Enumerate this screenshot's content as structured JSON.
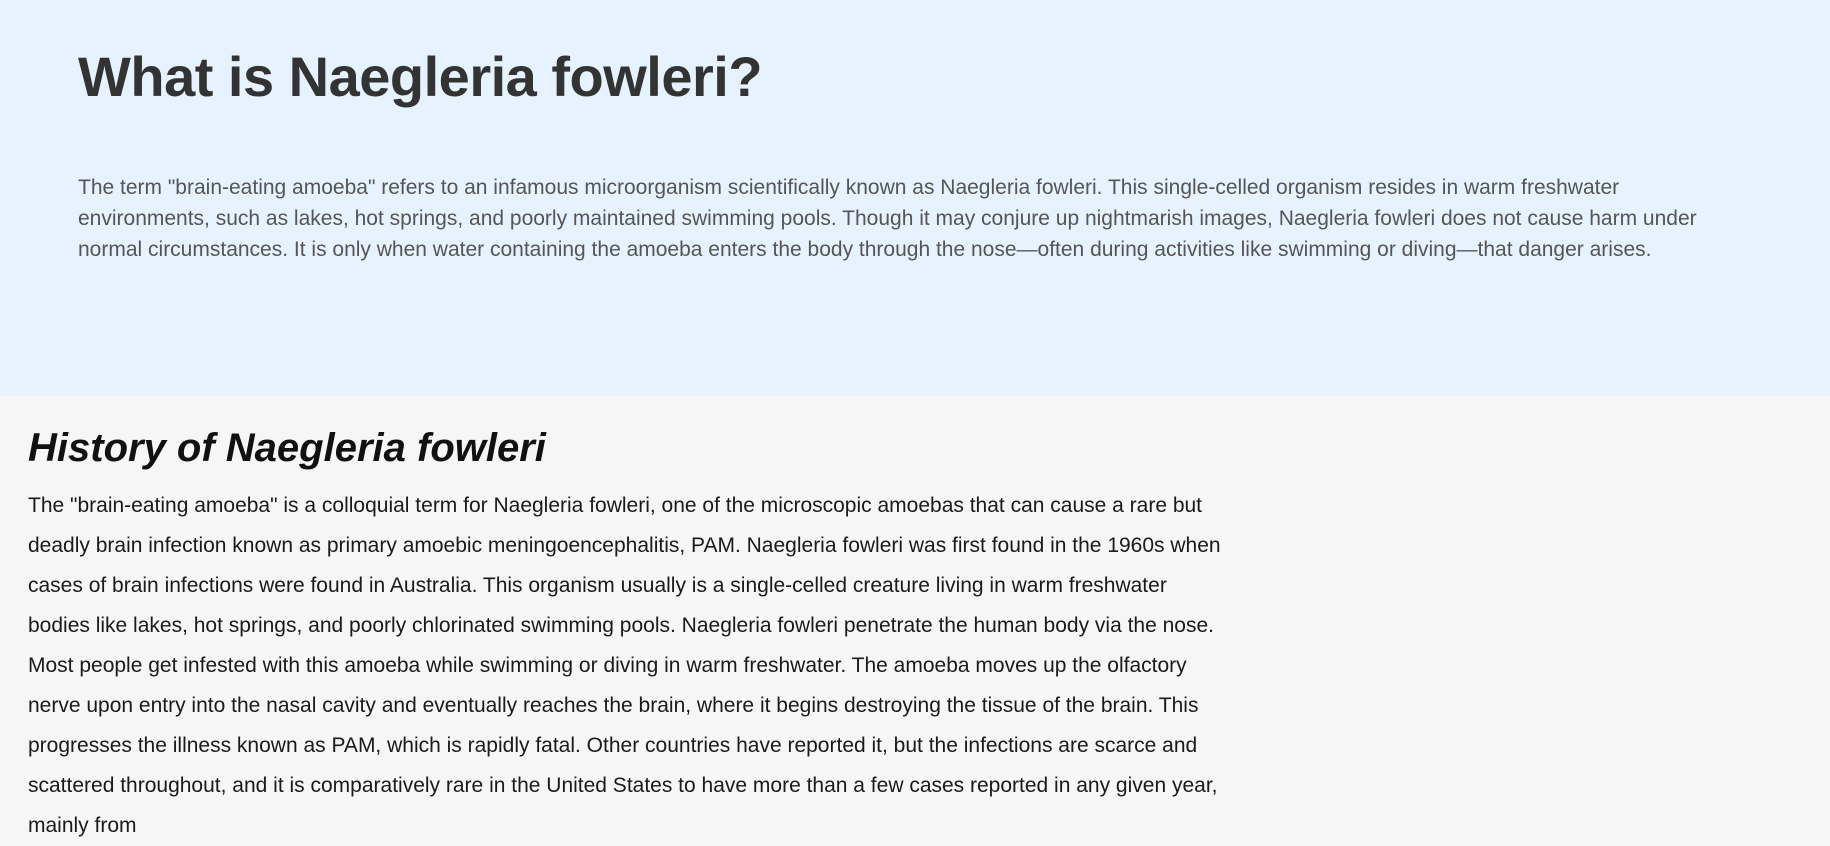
{
  "hero": {
    "title": "What is Naegleria fowleri?",
    "intro": "The term \"brain-eating amoeba\" refers to an infamous microorganism scientifically known as Naegleria fowleri. This single-celled organism resides in warm freshwater environments, such as lakes, hot springs, and poorly maintained swimming pools. Though it may conjure up nightmarish images, Naegleria fowleri does not cause harm under normal circumstances. It is only when water containing the amoeba enters the body through the nose—often during activities like swimming or diving—that danger arises."
  },
  "history": {
    "title": "History of Naegleria fowleri",
    "body": "The \"brain-eating amoeba\" is a colloquial term for Naegleria fowleri, one of the microscopic amoebas that can cause a rare but deadly brain infection known as primary amoebic meningoencephalitis, PAM. Naegleria fowleri was first found in the 1960s when cases of brain infections were found in Australia. This organism usually is a single-celled creature living in warm freshwater bodies like lakes, hot springs, and poorly chlorinated swimming pools. Naegleria fowleri penetrate the human body via the nose. Most people get infested with this amoeba while swimming or diving in warm freshwater. The amoeba moves up the olfactory nerve upon entry into the nasal cavity and eventually reaches the brain, where it begins destroying the tissue of the brain. This progresses the illness known as PAM, which is rapidly fatal. Other countries have reported it, but the infections are scarce and scattered throughout, and it is comparatively rare in the United States to have more than a few cases reported in any given year, mainly from"
  },
  "colors": {
    "hero_background": "#e6f3ff",
    "page_background": "#f6f6f6",
    "hero_title": "#333333",
    "hero_text": "#555555",
    "body_text": "#1a1a1a"
  }
}
